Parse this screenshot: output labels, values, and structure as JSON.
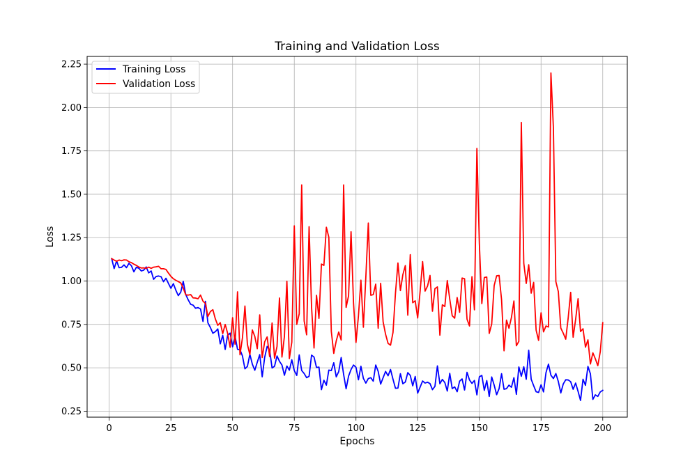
{
  "chart_data": {
    "type": "line",
    "title": "Training and Validation Loss",
    "xlabel": "Epochs",
    "ylabel": "Loss",
    "xlim": [
      -8.95,
      209.95
    ],
    "ylim": [
      0.2155,
      2.2945
    ],
    "xticks": [
      0,
      25,
      50,
      75,
      100,
      125,
      150,
      175,
      200
    ],
    "yticks": [
      0.25,
      0.5,
      0.75,
      1.0,
      1.25,
      1.5,
      1.75,
      2.0,
      2.25
    ],
    "xtick_labels": [
      "0",
      "25",
      "50",
      "75",
      "100",
      "125",
      "150",
      "175",
      "200"
    ],
    "ytick_labels": [
      "0.25",
      "0.50",
      "0.75",
      "1.00",
      "1.25",
      "1.50",
      "1.75",
      "2.00",
      "2.25"
    ],
    "grid": true,
    "legend_position": "upper left",
    "x_start": 1,
    "x_end": 200,
    "series": [
      {
        "name": "Training Loss",
        "color": "#0000ff",
        "values": [
          1.129,
          1.072,
          1.116,
          1.077,
          1.079,
          1.093,
          1.077,
          1.102,
          1.088,
          1.053,
          1.079,
          1.074,
          1.058,
          1.063,
          1.081,
          1.047,
          1.058,
          1.01,
          1.026,
          1.029,
          1.025,
          0.996,
          1.016,
          0.986,
          0.958,
          0.985,
          0.947,
          0.916,
          0.936,
          0.998,
          0.923,
          0.892,
          0.866,
          0.861,
          0.843,
          0.847,
          0.839,
          0.767,
          0.883,
          0.759,
          0.732,
          0.699,
          0.708,
          0.724,
          0.638,
          0.687,
          0.606,
          0.688,
          0.7,
          0.621,
          0.682,
          0.607,
          0.604,
          0.568,
          0.494,
          0.508,
          0.578,
          0.521,
          0.486,
          0.532,
          0.576,
          0.448,
          0.56,
          0.623,
          0.602,
          0.499,
          0.509,
          0.568,
          0.537,
          0.516,
          0.457,
          0.51,
          0.486,
          0.546,
          0.484,
          0.456,
          0.574,
          0.484,
          0.467,
          0.443,
          0.451,
          0.573,
          0.562,
          0.502,
          0.504,
          0.374,
          0.428,
          0.4,
          0.487,
          0.484,
          0.529,
          0.448,
          0.478,
          0.559,
          0.461,
          0.379,
          0.452,
          0.49,
          0.516,
          0.503,
          0.431,
          0.509,
          0.439,
          0.412,
          0.438,
          0.443,
          0.423,
          0.516,
          0.479,
          0.406,
          0.443,
          0.479,
          0.454,
          0.49,
          0.434,
          0.382,
          0.383,
          0.466,
          0.408,
          0.418,
          0.472,
          0.456,
          0.396,
          0.45,
          0.354,
          0.389,
          0.424,
          0.412,
          0.417,
          0.409,
          0.374,
          0.393,
          0.511,
          0.408,
          0.433,
          0.415,
          0.366,
          0.468,
          0.38,
          0.39,
          0.362,
          0.423,
          0.436,
          0.372,
          0.474,
          0.43,
          0.41,
          0.427,
          0.344,
          0.448,
          0.456,
          0.37,
          0.426,
          0.335,
          0.447,
          0.4,
          0.345,
          0.38,
          0.466,
          0.376,
          0.38,
          0.4,
          0.388,
          0.443,
          0.347,
          0.505,
          0.451,
          0.506,
          0.434,
          0.601,
          0.434,
          0.397,
          0.362,
          0.358,
          0.402,
          0.361,
          0.472,
          0.521,
          0.457,
          0.438,
          0.467,
          0.421,
          0.355,
          0.407,
          0.431,
          0.43,
          0.42,
          0.376,
          0.412,
          0.364,
          0.312,
          0.434,
          0.399,
          0.508,
          0.465,
          0.318,
          0.344,
          0.335,
          0.361,
          0.37
        ]
      },
      {
        "name": "Validation Loss",
        "color": "#ff0000",
        "values": [
          1.129,
          1.121,
          1.114,
          1.121,
          1.117,
          1.122,
          1.121,
          1.111,
          1.106,
          1.097,
          1.09,
          1.081,
          1.075,
          1.076,
          1.073,
          1.08,
          1.073,
          1.08,
          1.082,
          1.085,
          1.071,
          1.071,
          1.067,
          1.046,
          1.027,
          1.013,
          1.004,
          0.997,
          0.989,
          0.959,
          0.921,
          0.919,
          0.922,
          0.903,
          0.902,
          0.898,
          0.919,
          0.884,
          0.871,
          0.796,
          0.824,
          0.835,
          0.782,
          0.745,
          0.76,
          0.697,
          0.75,
          0.698,
          0.618,
          0.789,
          0.636,
          0.938,
          0.575,
          0.673,
          0.856,
          0.635,
          0.575,
          0.718,
          0.681,
          0.61,
          0.805,
          0.559,
          0.65,
          0.678,
          0.565,
          0.758,
          0.555,
          0.623,
          0.902,
          0.562,
          0.681,
          0.999,
          0.553,
          0.648,
          1.318,
          0.75,
          0.811,
          1.554,
          0.77,
          0.69,
          1.313,
          0.85,
          0.614,
          0.918,
          0.785,
          1.098,
          1.09,
          1.31,
          1.252,
          0.71,
          0.583,
          0.655,
          0.706,
          0.66,
          1.554,
          0.848,
          0.915,
          1.284,
          0.874,
          0.646,
          0.799,
          1.005,
          0.734,
          1.024,
          1.334,
          0.918,
          0.922,
          0.982,
          0.728,
          0.987,
          0.765,
          0.693,
          0.641,
          0.63,
          0.704,
          0.929,
          1.104,
          0.945,
          1.037,
          1.089,
          0.803,
          1.152,
          0.875,
          0.886,
          0.787,
          0.942,
          1.112,
          0.942,
          0.971,
          1.032,
          0.826,
          0.956,
          0.966,
          0.688,
          0.863,
          0.853,
          1.003,
          0.896,
          0.8,
          0.786,
          0.905,
          0.82,
          1.017,
          1.013,
          0.78,
          0.741,
          1.025,
          0.834,
          1.764,
          1.215,
          0.87,
          1.02,
          1.023,
          0.698,
          0.752,
          0.974,
          1.03,
          1.032,
          0.892,
          0.598,
          0.775,
          0.728,
          0.79,
          0.885,
          0.627,
          0.652,
          1.914,
          1.103,
          0.986,
          1.094,
          0.93,
          0.992,
          0.717,
          0.658,
          0.817,
          0.707,
          0.741,
          0.735,
          2.199,
          1.884,
          0.997,
          0.939,
          0.729,
          0.699,
          0.665,
          0.788,
          0.935,
          0.676,
          0.778,
          0.898,
          0.709,
          0.725,
          0.619,
          0.661,
          0.522,
          0.586,
          0.552,
          0.512,
          0.593,
          0.76
        ]
      }
    ]
  }
}
